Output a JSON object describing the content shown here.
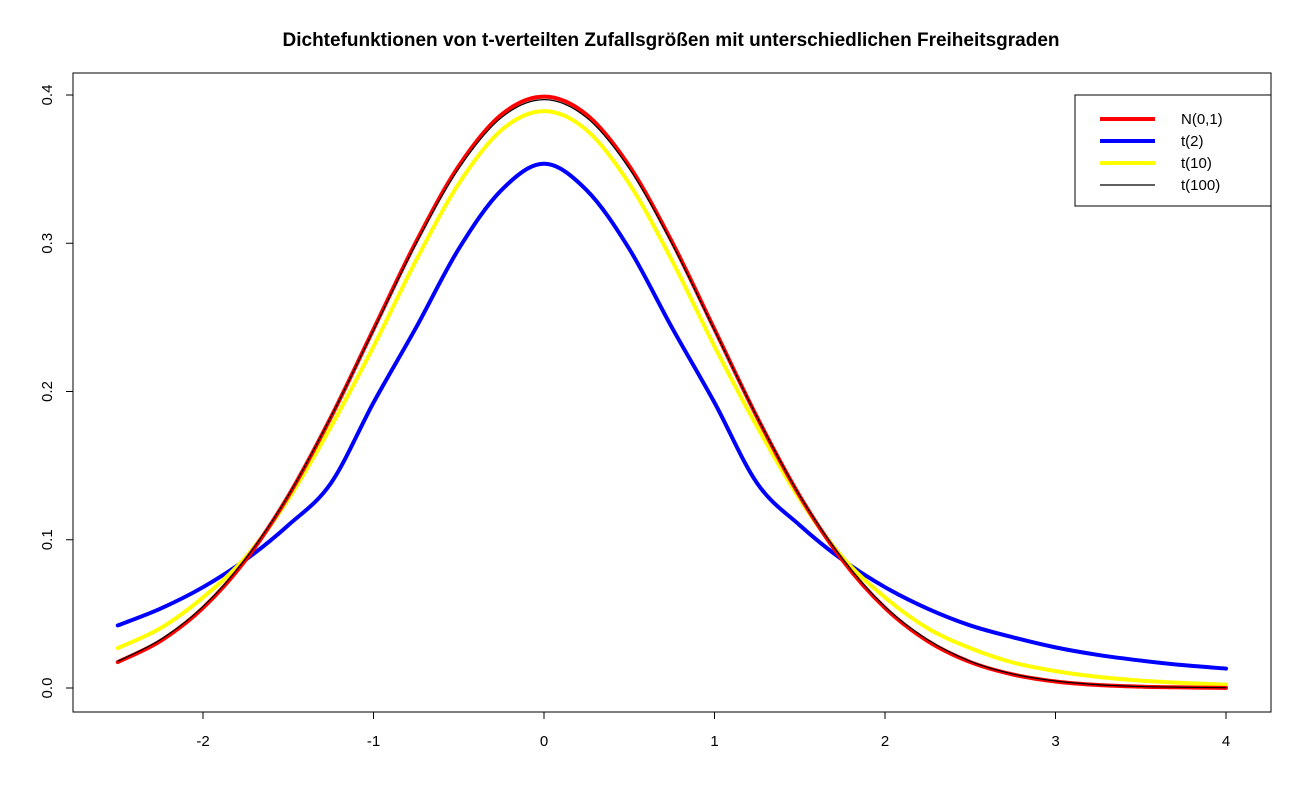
{
  "chart_data": {
    "type": "line",
    "title": "Dichtefunktionen von t-verteilten Zufallsgrößen mit unterschiedlichen Freiheitsgraden",
    "xlabel": "",
    "ylabel": "",
    "xlim": [
      -2.5,
      4
    ],
    "ylim": [
      0,
      0.4
    ],
    "x_ticks": [
      -2,
      -1,
      0,
      1,
      2,
      3,
      4
    ],
    "x_tick_labels": [
      "-2",
      "-1",
      "0",
      "1",
      "2",
      "3",
      "4"
    ],
    "y_ticks": [
      0,
      0.1,
      0.2,
      0.3,
      0.4
    ],
    "y_tick_labels": [
      "0.0",
      "0.1",
      "0.2",
      "0.3",
      "0.4"
    ],
    "grid": false,
    "legend": {
      "position": "top-right"
    },
    "x": [
      -2.5,
      -2.25,
      -2,
      -1.75,
      -1.5,
      -1.25,
      -1,
      -0.75,
      -0.5,
      -0.25,
      0,
      0.25,
      0.5,
      0.75,
      1,
      1.25,
      1.5,
      1.75,
      2,
      2.25,
      2.5,
      2.75,
      3,
      3.25,
      3.5,
      3.75,
      4
    ],
    "series": [
      {
        "name": "N(0,1)",
        "color": "#ff0000",
        "line_width": 4,
        "values": [
          0.0175,
          0.0317,
          0.054,
          0.0863,
          0.1295,
          0.1826,
          0.242,
          0.3011,
          0.3521,
          0.3867,
          0.3989,
          0.3867,
          0.3521,
          0.3011,
          0.242,
          0.1826,
          0.1295,
          0.0863,
          0.054,
          0.0317,
          0.0175,
          0.0091,
          0.0044,
          0.002,
          0.0009,
          0.0004,
          0.0001
        ]
      },
      {
        "name": "t(2)",
        "color": "#0000ff",
        "line_width": 4,
        "values": [
          0.0422,
          0.0535,
          0.068,
          0.0865,
          0.1098,
          0.1381,
          0.1925,
          0.2432,
          0.2962,
          0.3358,
          0.3536,
          0.3358,
          0.2962,
          0.2432,
          0.1925,
          0.1381,
          0.1098,
          0.0865,
          0.068,
          0.0535,
          0.0422,
          0.0342,
          0.0274,
          0.0223,
          0.0185,
          0.0154,
          0.0131
        ]
      },
      {
        "name": "t(10)",
        "color": "#ffff00",
        "line_width": 4,
        "values": [
          0.0269,
          0.0403,
          0.0611,
          0.0882,
          0.1274,
          0.1762,
          0.2304,
          0.2885,
          0.3402,
          0.3763,
          0.3891,
          0.3763,
          0.3402,
          0.2885,
          0.2304,
          0.1762,
          0.1274,
          0.0882,
          0.0611,
          0.0403,
          0.0269,
          0.0172,
          0.0114,
          0.0075,
          0.005,
          0.0034,
          0.0023
        ]
      },
      {
        "name": "t(100)",
        "color": "#000000",
        "line_width": 1.2,
        "values": [
          0.018,
          0.0326,
          0.0549,
          0.0873,
          0.1298,
          0.1828,
          0.2413,
          0.2998,
          0.3503,
          0.3847,
          0.3969,
          0.3847,
          0.3503,
          0.2998,
          0.2413,
          0.1828,
          0.1298,
          0.0873,
          0.0549,
          0.0326,
          0.018,
          0.0094,
          0.0047,
          0.0022,
          0.001,
          0.0005,
          0.0002
        ]
      }
    ]
  }
}
